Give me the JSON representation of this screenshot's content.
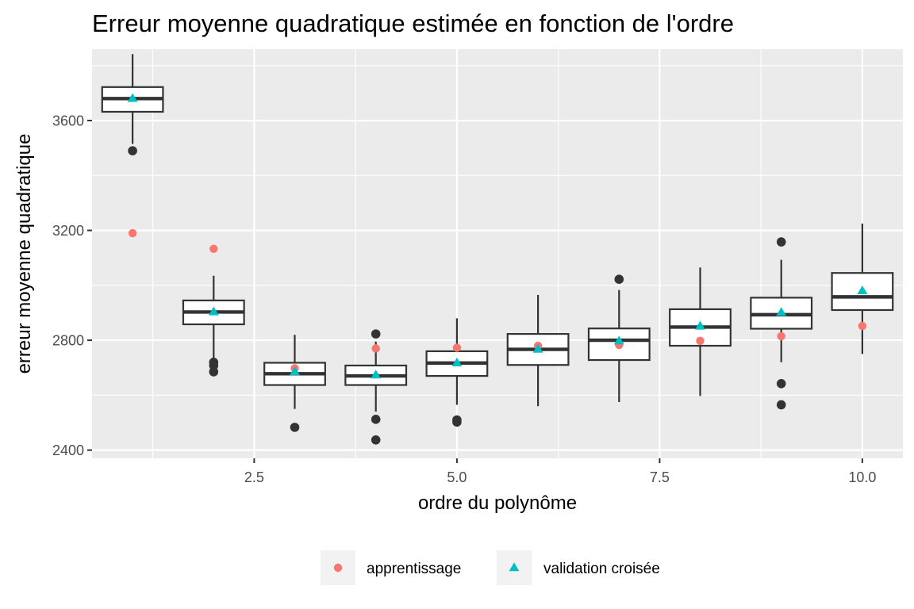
{
  "chart_data": {
    "type": "box",
    "title": "Erreur moyenne quadratique estimée en fonction de l'ordre",
    "xlabel": "ordre du polynôme",
    "ylabel": "erreur moyenne quadratique",
    "xlim": [
      0.5,
      10.5
    ],
    "ylim": [
      2370,
      3860
    ],
    "xticks": [
      2.5,
      5.0,
      7.5,
      10.0
    ],
    "xtick_labels": [
      "2.5",
      "5.0",
      "7.5",
      "10.0"
    ],
    "yticks": [
      2400,
      2800,
      3200,
      3600
    ],
    "ytick_labels": [
      "2400",
      "2800",
      "3200",
      "3600"
    ],
    "grid": true,
    "legend": {
      "position": "bottom",
      "items": [
        {
          "label": "apprentissage",
          "shape": "circle",
          "color": "#F8766D"
        },
        {
          "label": "validation croisée",
          "shape": "triangle",
          "color": "#00BFC4"
        }
      ]
    },
    "boxes": [
      {
        "x": 1,
        "q1": 3632,
        "median": 3680,
        "q3": 3722,
        "lower": 3515,
        "upper": 3842,
        "outliers": [
          3490
        ]
      },
      {
        "x": 2,
        "q1": 2858,
        "median": 2903,
        "q3": 2945,
        "lower": 2730,
        "upper": 3035,
        "outliers": [
          2720,
          2708,
          2685
        ]
      },
      {
        "x": 3,
        "q1": 2637,
        "median": 2678,
        "q3": 2718,
        "lower": 2550,
        "upper": 2820,
        "outliers": [
          2483
        ]
      },
      {
        "x": 4,
        "q1": 2637,
        "median": 2670,
        "q3": 2708,
        "lower": 2540,
        "upper": 2795,
        "outliers": [
          2823,
          2512,
          2437
        ]
      },
      {
        "x": 5,
        "q1": 2670,
        "median": 2717,
        "q3": 2760,
        "lower": 2565,
        "upper": 2880,
        "outliers": [
          2510,
          2502
        ]
      },
      {
        "x": 6,
        "q1": 2710,
        "median": 2767,
        "q3": 2823,
        "lower": 2560,
        "upper": 2965,
        "outliers": []
      },
      {
        "x": 7,
        "q1": 2728,
        "median": 2800,
        "q3": 2843,
        "lower": 2575,
        "upper": 2983,
        "outliers": [
          3022
        ]
      },
      {
        "x": 8,
        "q1": 2780,
        "median": 2848,
        "q3": 2913,
        "lower": 2597,
        "upper": 3065,
        "outliers": []
      },
      {
        "x": 9,
        "q1": 2842,
        "median": 2893,
        "q3": 2955,
        "lower": 2720,
        "upper": 3093,
        "outliers": [
          3158,
          2642,
          2565
        ]
      },
      {
        "x": 10,
        "q1": 2910,
        "median": 2958,
        "q3": 3045,
        "lower": 2750,
        "upper": 3225,
        "outliers": []
      }
    ],
    "series": [
      {
        "name": "apprentissage",
        "color": "#F8766D",
        "shape": "circle",
        "x": [
          1,
          2,
          3,
          4,
          5,
          6,
          7,
          8,
          9,
          10
        ],
        "values": [
          3190,
          3133,
          2698,
          2770,
          2773,
          2780,
          2783,
          2798,
          2815,
          2852
        ]
      },
      {
        "name": "validation croisée",
        "color": "#00BFC4",
        "shape": "triangle",
        "x": [
          1,
          2,
          3,
          4,
          5,
          6,
          7,
          8,
          9,
          10
        ],
        "values": [
          3680,
          2903,
          2685,
          2673,
          2717,
          2767,
          2797,
          2851,
          2901,
          2980
        ]
      }
    ],
    "colors": {
      "panel_background": "#EBEBEB",
      "grid": "#FFFFFF",
      "box_line": "#333333",
      "box_fill": "#FFFFFF",
      "outlier": "#333333",
      "legend_key_background": "#F2F2F2"
    }
  }
}
